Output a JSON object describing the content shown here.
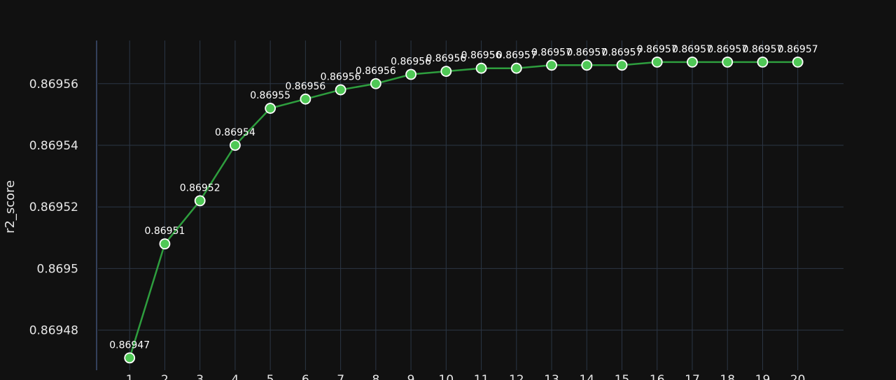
{
  "chart_data": {
    "type": "line",
    "title": "",
    "xlabel": "",
    "ylabel": "r2_score",
    "x": [
      1,
      2,
      3,
      4,
      5,
      6,
      7,
      8,
      9,
      10,
      11,
      12,
      13,
      14,
      15,
      16,
      17,
      18,
      19,
      20
    ],
    "x_tick_labels": [
      "1",
      "2",
      "3",
      "4",
      "5",
      "6",
      "7",
      "8",
      "9",
      "10",
      "11",
      "12",
      "13",
      "14",
      "15",
      "16",
      "17",
      "18",
      "19",
      "20"
    ],
    "series": [
      {
        "values": [
          0.869471,
          0.869508,
          0.869522,
          0.86954,
          0.869552,
          0.869555,
          0.869558,
          0.86956,
          0.869563,
          0.869564,
          0.869565,
          0.869565,
          0.869566,
          0.869566,
          0.869566,
          0.869567,
          0.869567,
          0.869567,
          0.869567,
          0.869567
        ],
        "labels": [
          "0.86947",
          "0.86951",
          "0.86952",
          "0.86954",
          "0.86955",
          "0.86956",
          "0.86956",
          "0.86956",
          "0.86956",
          "0.86956",
          "0.86956",
          "0.86957",
          "0.86957",
          "0.86957",
          "0.86957",
          "0.86957",
          "0.86957",
          "0.86957",
          "0.86957",
          "0.86957"
        ],
        "color": "#2e9e3e",
        "marker_color": "#4fc856"
      }
    ],
    "y_ticks": [
      0.86948,
      0.8695,
      0.86952,
      0.86954,
      0.86956
    ],
    "y_tick_labels": [
      "0.86948",
      "0.8695",
      "0.86952",
      "0.86954",
      "0.86956"
    ],
    "ylim": [
      0.869467,
      0.869574
    ],
    "xlim": [
      0.1,
      21.3
    ],
    "grid": true,
    "legend": "none",
    "colors": {
      "background": "#111111",
      "grid": "#2b3645",
      "text": "#e6e6e6"
    }
  }
}
